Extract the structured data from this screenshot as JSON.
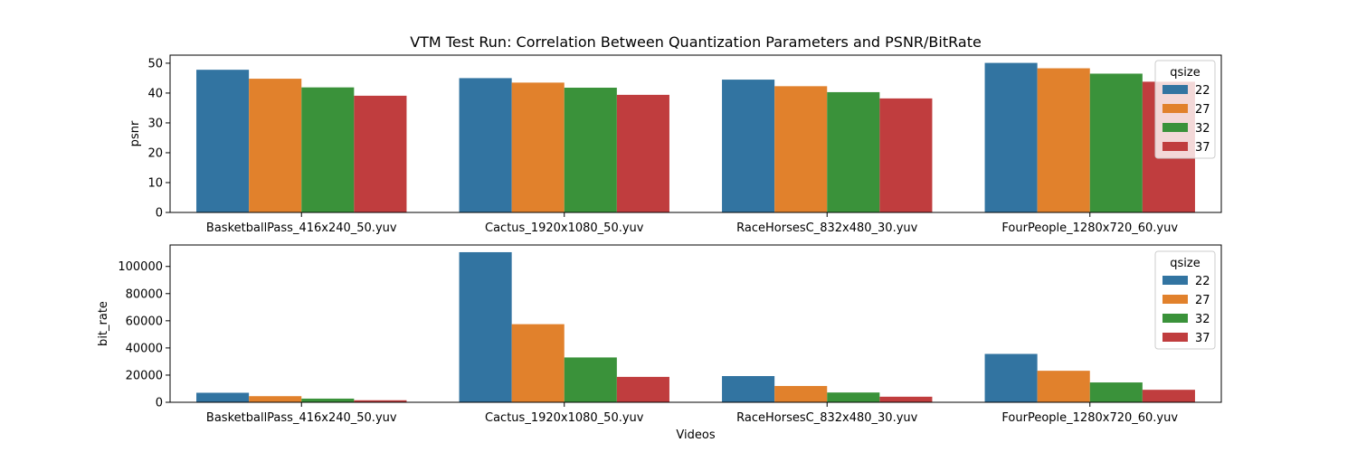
{
  "title": "VTM Test Run: Correlation Between Quantization Parameters and PSNR/BitRate",
  "colors": {
    "qsize_22": "#3274a1",
    "qsize_27": "#e1812c",
    "qsize_32": "#3a923a",
    "qsize_37": "#c03d3e"
  },
  "chart_data": [
    {
      "type": "bar",
      "categories": [
        "BasketballPass_416x240_50.yuv",
        "Cactus_1920x1080_50.yuv",
        "RaceHorsesC_832x480_30.yuv",
        "FourPeople_1280x720_60.yuv"
      ],
      "series": [
        {
          "name": "22",
          "values": [
            47.8,
            45.0,
            44.5,
            50.1
          ]
        },
        {
          "name": "27",
          "values": [
            44.8,
            43.5,
            42.3,
            48.3
          ]
        },
        {
          "name": "32",
          "values": [
            41.9,
            41.8,
            40.3,
            46.5
          ]
        },
        {
          "name": "37",
          "values": [
            39.1,
            39.4,
            38.2,
            43.8
          ]
        }
      ],
      "xlabel": "",
      "ylabel": "psnr",
      "ylim": [
        0,
        52.7
      ],
      "yticks": [
        0,
        10,
        20,
        30,
        40,
        50
      ],
      "legend": {
        "title": "qsize",
        "position": "upper right"
      },
      "grid": false
    },
    {
      "type": "bar",
      "categories": [
        "BasketballPass_416x240_50.yuv",
        "Cactus_1920x1080_50.yuv",
        "RaceHorsesC_832x480_30.yuv",
        "FourPeople_1280x720_60.yuv"
      ],
      "series": [
        {
          "name": "22",
          "values": [
            7000,
            110500,
            19300,
            35600
          ]
        },
        {
          "name": "27",
          "values": [
            4500,
            57500,
            12000,
            23200
          ]
        },
        {
          "name": "32",
          "values": [
            2700,
            33000,
            7200,
            14600
          ]
        },
        {
          "name": "37",
          "values": [
            1500,
            18700,
            4100,
            9200
          ]
        }
      ],
      "xlabel": "Videos",
      "ylabel": "bit_rate",
      "ylim": [
        0,
        115800
      ],
      "yticks": [
        0,
        20000,
        40000,
        60000,
        80000,
        100000
      ],
      "legend": {
        "title": "qsize",
        "position": "upper right"
      },
      "grid": false
    }
  ]
}
